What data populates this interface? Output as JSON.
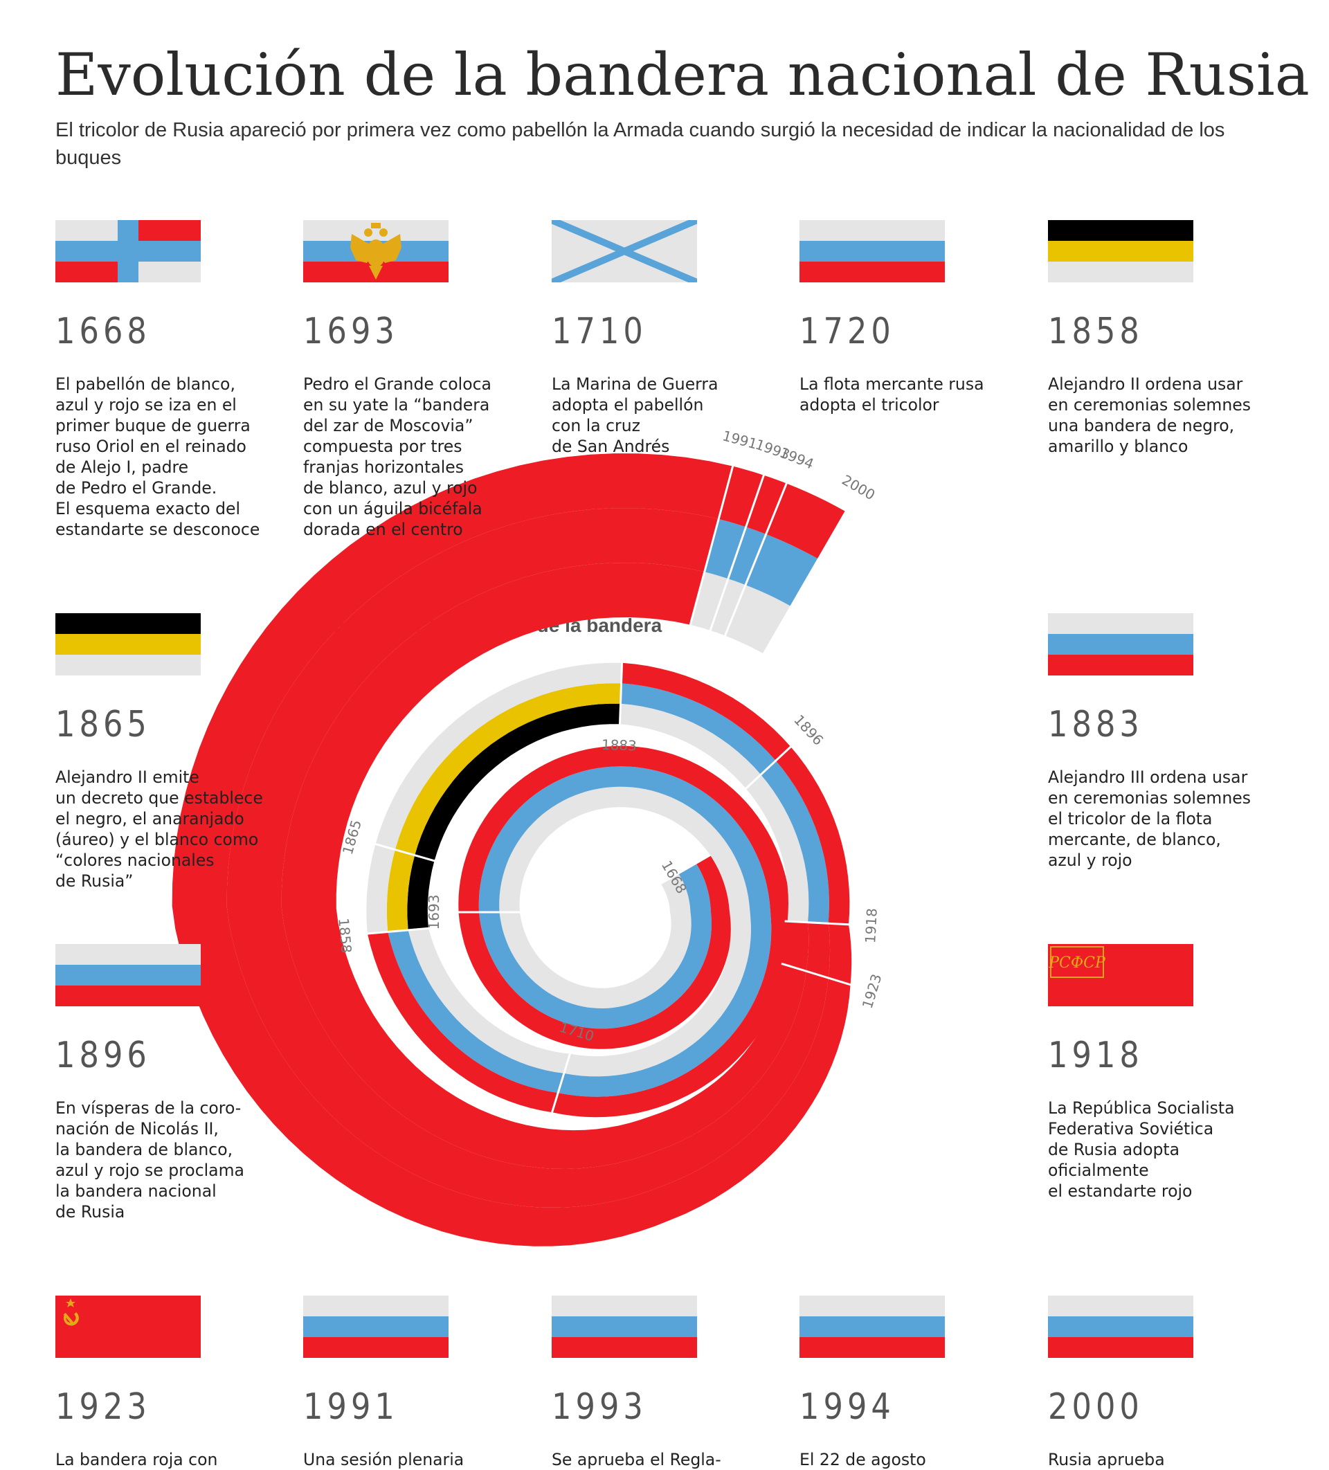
{
  "title": "Evolución de la bandera nacional de Rusia",
  "subtitle": "El tricolor de Rusia apareció por primera vez como pabellón la Armada cuando surgió la necesidad de indicar la nacionalidad de los buques",
  "spiral_title": "Evolución de los colores de la bandera",
  "colors": {
    "white": "#e5e5e5",
    "blue": "#58a3d8",
    "red": "#ee1c25",
    "black": "#000000",
    "yellow": "#e9c300",
    "gold": "#e3a916"
  },
  "entries": [
    {
      "year": "1668",
      "flag": "cross",
      "desc": "El pabellón de blanco,\nazul y rojo se iza en el\nprimer buque de guerra\nruso Oriol en el reinado\nde Alejo I, padre\nde Pedro el Grande.\nEl esquema exacto del\nestandarte se desconoce"
    },
    {
      "year": "1693",
      "flag": "eagle",
      "desc": "Pedro el Grande coloca\nen su yate la “bandera\ndel zar de Moscovia”\ncompuesta por tres\nfranjas horizontales\nde blanco, azul y rojo\ncon un águila bicéfala\ndorada en el centro"
    },
    {
      "year": "1710",
      "flag": "saltire",
      "desc": "La Marina de Guerra\nadopta el pabellón\ncon la cruz\nde San Andrés"
    },
    {
      "year": "1720",
      "flag": "tricolor",
      "desc": "La flota mercante rusa\nadopta el tricolor"
    },
    {
      "year": "1858",
      "flag": "imperial",
      "desc": "Alejandro II ordena usar\nen ceremonias solemnes\nuna bandera de negro,\namarillo y blanco"
    },
    {
      "year": "1865",
      "flag": "imperial",
      "desc": "Alejandro II emite\nun decreto que establece\nel negro, el anaranjado\n(áureo) y el blanco como\n“colores nacionales\nde Rusia”"
    },
    {
      "year": "1883",
      "flag": "tricolor",
      "desc": "Alejandro III ordena usar\nen ceremonias solemnes\nel tricolor de la flota\nmercante, de blanco,\nazul y rojo"
    },
    {
      "year": "1896",
      "flag": "tricolor",
      "desc": "En vísperas de la coro-\nnación de Nicolás II,\nla bandera de blanco,\nazul y rojo se proclama\nla bandera nacional\nde Rusia"
    },
    {
      "year": "1918",
      "flag": "rsfsr",
      "desc": "La República Socialista\nFederativa Soviética\nde Rusia adopta\noficialmente\nel estandarte rojo"
    },
    {
      "year": "1923",
      "flag": "ussr",
      "desc": "La bandera roja con"
    },
    {
      "year": "1991",
      "flag": "tricolor",
      "desc": "Una sesión plenaria"
    },
    {
      "year": "1993",
      "flag": "tricolor",
      "desc": "Se aprueba el Regla-"
    },
    {
      "year": "1994",
      "flag": "tricolor",
      "desc": "El 22 de agosto"
    },
    {
      "year": "2000",
      "flag": "tricolor",
      "desc": "Rusia aprueba"
    }
  ],
  "rsfsr_text": "РСФСР",
  "spiral": {
    "segments": [
      {
        "from": "1668",
        "to": "1693",
        "bands": [
          "white",
          "blue",
          "red"
        ]
      },
      {
        "from": "1693",
        "to": "1710",
        "bands": [
          "white",
          "blue",
          "red"
        ]
      },
      {
        "from": "1710",
        "to": "1858",
        "bands": [
          "white",
          "blue",
          "red"
        ]
      },
      {
        "from": "1858",
        "to": "1865",
        "bands": [
          "black",
          "yellow",
          "white"
        ]
      },
      {
        "from": "1865",
        "to": "1883",
        "bands": [
          "black",
          "yellow",
          "white"
        ]
      },
      {
        "from": "1883",
        "to": "1896",
        "bands": [
          "white",
          "blue",
          "red"
        ]
      },
      {
        "from": "1896",
        "to": "1918",
        "bands": [
          "white",
          "blue",
          "red"
        ]
      },
      {
        "from": "1918",
        "to": "1923",
        "bands": [
          "red",
          "red",
          "red"
        ]
      },
      {
        "from": "1923",
        "to": "1991",
        "bands": [
          "red",
          "red",
          "red"
        ]
      },
      {
        "from": "1991",
        "to": "1993",
        "bands": [
          "white",
          "blue",
          "red"
        ]
      },
      {
        "from": "1993",
        "to": "1994",
        "bands": [
          "white",
          "blue",
          "red"
        ]
      },
      {
        "from": "1994",
        "to": "2000",
        "bands": [
          "white",
          "blue",
          "red"
        ]
      }
    ],
    "ticks": [
      "1668",
      "1693",
      "1710",
      "1858",
      "1865",
      "1883",
      "1896",
      "1918",
      "1923",
      "1991",
      "1993",
      "1994",
      "2000"
    ]
  }
}
